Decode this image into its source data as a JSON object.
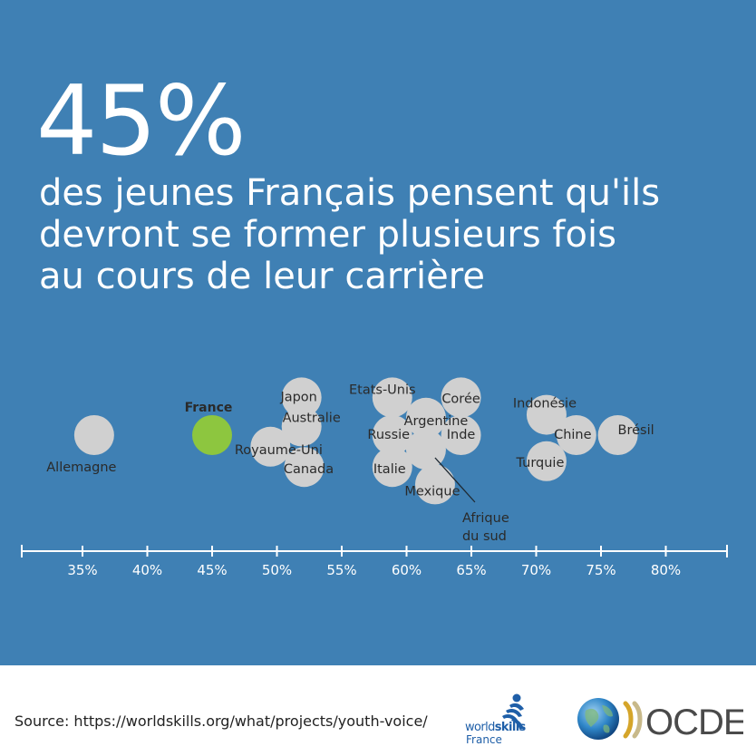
{
  "headline": {
    "percent": "45%",
    "lines": [
      "des jeunes Français pensent qu'ils",
      "devront se former plusieurs fois",
      "au cours de leur carrière"
    ]
  },
  "chart_data": {
    "type": "scatter",
    "title": "",
    "xlabel": "",
    "ylabel": "",
    "xlim": [
      31,
      85
    ],
    "x_ticks": [
      35,
      40,
      45,
      50,
      55,
      60,
      65,
      70,
      75,
      80
    ],
    "x_tick_labels": [
      "35%",
      "40%",
      "45%",
      "50%",
      "55%",
      "60%",
      "65%",
      "70%",
      "75%",
      "80%"
    ],
    "grid": false,
    "highlight_color": "#8dc63f",
    "point_color": "#d0d0d0",
    "points": [
      {
        "label": "Allemagne",
        "x": 35.9,
        "row": 0.0
      },
      {
        "label": "France",
        "x": 45.0,
        "row": 0.0,
        "highlight": true
      },
      {
        "label": "Royaume-Uni",
        "x": 49.5,
        "row": -0.4
      },
      {
        "label": "Japon",
        "x": 51.9,
        "row": 1.3
      },
      {
        "label": "Australie",
        "x": 51.9,
        "row": 0.3
      },
      {
        "label": "Canada",
        "x": 52.1,
        "row": -1.1
      },
      {
        "label": "Etats-Unis",
        "x": 58.9,
        "row": 1.3
      },
      {
        "label": "Russie",
        "x": 58.9,
        "row": 0.0
      },
      {
        "label": "Italie",
        "x": 58.9,
        "row": -1.1
      },
      {
        "label": "Argentine",
        "x": 61.5,
        "row": 0.6
      },
      {
        "label": "Afrique du sud",
        "x": 61.5,
        "row": -0.5
      },
      {
        "label": "Mexique",
        "x": 62.2,
        "row": -1.7
      },
      {
        "label": "Corée",
        "x": 64.2,
        "row": 1.3
      },
      {
        "label": "Inde",
        "x": 64.2,
        "row": 0.0
      },
      {
        "label": "Indonésie",
        "x": 70.8,
        "row": 0.7
      },
      {
        "label": "Turquie",
        "x": 70.8,
        "row": -0.9
      },
      {
        "label": "Chine",
        "x": 73.1,
        "row": 0.0
      },
      {
        "label": "Brésil",
        "x": 76.3,
        "row": 0.0
      }
    ]
  },
  "footer": {
    "source": "Source: https://worldskills.org/what/projects/youth-voice/",
    "worldskills_world": "world",
    "worldskills_skills": "skills",
    "worldskills_country": "France",
    "oecd_text": "OCDE"
  }
}
